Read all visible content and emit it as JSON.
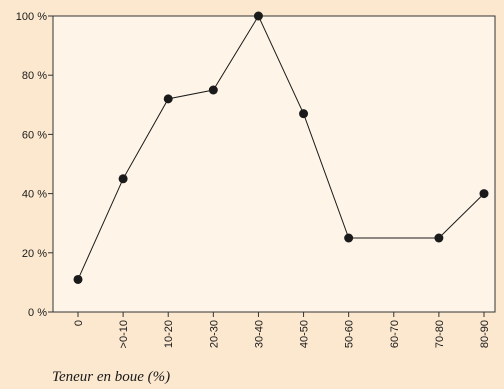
{
  "colors": {
    "page_background": "#fbe8cf",
    "plot_background": "#fef5e8",
    "axis": "#333333",
    "line": "#1a1a1a",
    "marker": "#1a1a1a"
  },
  "chart_data": {
    "type": "line",
    "title": "",
    "xlabel": "Teneur en boue (%)",
    "ylabel": "",
    "categories": [
      "0",
      ">0-10",
      "10-20",
      "20-30",
      "30-40",
      "40-50",
      "50-60",
      "60-70",
      "70-80",
      "80-90"
    ],
    "series": [
      {
        "values": [
          11,
          45,
          72,
          75,
          100,
          67,
          25,
          null,
          25,
          40
        ]
      }
    ],
    "connect_gaps": true,
    "ylim": [
      0,
      100
    ],
    "yticks": [
      0,
      20,
      40,
      60,
      80,
      100
    ],
    "ytick_labels": [
      "0 %",
      "20 %",
      "40 %",
      "60 %",
      "80 %",
      "100 %"
    ],
    "grid": false,
    "legend": "none"
  }
}
